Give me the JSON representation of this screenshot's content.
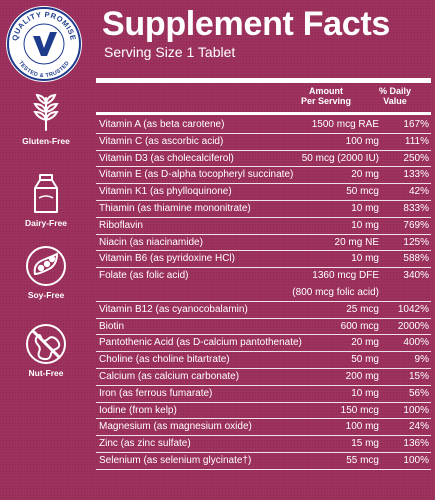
{
  "badge": {
    "top_text": "QUALITY PROMISE",
    "bottom_text": "TESTED & TRUSTED",
    "ring_color": "#1e3c8c",
    "check_color": "#1e3c8c"
  },
  "claims": [
    {
      "label": "Gluten-Free",
      "icon": "wheat-icon"
    },
    {
      "label": "Dairy-Free",
      "icon": "milk-carton-icon"
    },
    {
      "label": "Soy-Free",
      "icon": "soybean-icon"
    },
    {
      "label": "Nut-Free",
      "icon": "peanut-icon"
    }
  ],
  "panel": {
    "title": "Supplement Facts",
    "serving": "Serving Size 1 Tablet",
    "col_amount": [
      "Amount",
      "Per Serving"
    ],
    "col_dv": [
      "% Daily",
      "Value"
    ]
  },
  "rows": [
    {
      "nutrient": "Vitamin A (as beta carotene)",
      "amount": "1500 mcg RAE",
      "dv": "167%"
    },
    {
      "nutrient": "Vitamin C (as ascorbic acid)",
      "amount": "100 mg",
      "dv": "111%"
    },
    {
      "nutrient": "Vitamin D3 (as cholecalciferol)",
      "amount": "50 mcg (2000 IU)",
      "dv": "250%"
    },
    {
      "nutrient": "Vitamin E (as D-alpha tocopheryl succinate)",
      "amount": "20 mg",
      "dv": "133%"
    },
    {
      "nutrient": "Vitamin K1 (as phylloquinone)",
      "amount": "50 mcg",
      "dv": "42%"
    },
    {
      "nutrient": "Thiamin (as thiamine mononitrate)",
      "amount": "10 mg",
      "dv": "833%"
    },
    {
      "nutrient": "Riboflavin",
      "amount": "10 mg",
      "dv": "769%"
    },
    {
      "nutrient": "Niacin (as niacinamide)",
      "amount": "20 mg NE",
      "dv": "125%"
    },
    {
      "nutrient": "Vitamin B6 (as pyridoxine HCl)",
      "amount": "10 mg",
      "dv": "588%"
    },
    {
      "nutrient": "Folate (as folic acid)",
      "amount": "1360 mcg DFE",
      "dv": "340%"
    },
    {
      "nutrient": "",
      "amount": "(800 mcg folic acid)",
      "dv": ""
    },
    {
      "nutrient": "Vitamin B12 (as cyanocobalamin)",
      "amount": "25 mcg",
      "dv": "1042%"
    },
    {
      "nutrient": "Biotin",
      "amount": "600 mcg",
      "dv": "2000%"
    },
    {
      "nutrient": "Pantothenic Acid (as D-calcium pantothenate)",
      "amount": "20 mg",
      "dv": "400%"
    },
    {
      "nutrient": "Choline (as choline bitartrate)",
      "amount": "50 mg",
      "dv": "9%"
    },
    {
      "nutrient": "Calcium (as calcium carbonate)",
      "amount": "200 mg",
      "dv": "15%"
    },
    {
      "nutrient": "Iron (as ferrous fumarate)",
      "amount": "10 mg",
      "dv": "56%"
    },
    {
      "nutrient": "Iodine (from kelp)",
      "amount": "150 mcg",
      "dv": "100%"
    },
    {
      "nutrient": "Magnesium (as magnesium oxide)",
      "amount": "100 mg",
      "dv": "24%"
    },
    {
      "nutrient": "Zinc (as zinc sulfate)",
      "amount": "15 mg",
      "dv": "136%"
    },
    {
      "nutrient": "Selenium (as selenium glycinate†)",
      "amount": "55 mcg",
      "dv": "100%"
    }
  ],
  "colors": {
    "background": "#9c2f5c",
    "text": "#ffffff"
  }
}
